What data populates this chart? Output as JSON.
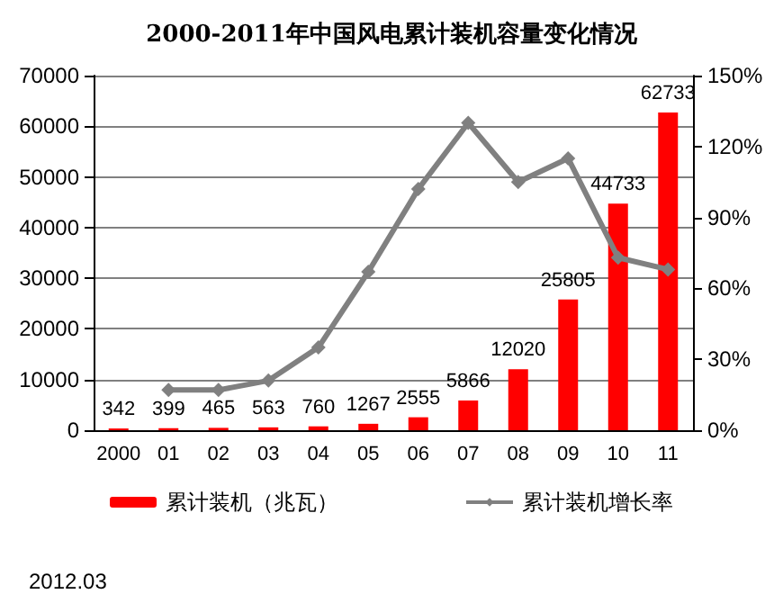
{
  "chart_data": {
    "type": "bar",
    "title": "2000-2011年中国风电累计装机容量变化情况",
    "categories": [
      "2000",
      "01",
      "02",
      "03",
      "04",
      "05",
      "06",
      "07",
      "08",
      "09",
      "10",
      "11"
    ],
    "series": [
      {
        "name": "累计装机（兆瓦）",
        "color": "#ff0000",
        "values": [
          342,
          399,
          465,
          563,
          760,
          1267,
          2555,
          5866,
          12020,
          25805,
          44733,
          62733
        ],
        "value_labels": [
          "342",
          "399",
          "465",
          "563",
          "760",
          "1267",
          "2555",
          "5866",
          "12020",
          "25805",
          "44733",
          "62733"
        ]
      },
      {
        "name": "累计装机增长率",
        "type": "line",
        "axis": "y2",
        "color": "#808080",
        "marker": "diamond",
        "values": [
          null,
          17,
          17,
          21,
          35,
          67,
          102,
          130,
          105,
          115,
          73,
          68
        ]
      }
    ],
    "ylim": [
      0,
      70000
    ],
    "yticks": [
      0,
      10000,
      20000,
      30000,
      40000,
      50000,
      60000,
      70000
    ],
    "y2lim": [
      0,
      150
    ],
    "y2ticks": [
      {
        "value": 0,
        "label": "0%"
      },
      {
        "value": 30,
        "label": "30%"
      },
      {
        "value": 60,
        "label": "60%"
      },
      {
        "value": 90,
        "label": "90%"
      },
      {
        "value": 120,
        "label": "120%"
      },
      {
        "value": 150,
        "label": "150%"
      }
    ],
    "grid": "y",
    "legend": "bottom",
    "annotations": [
      "2012.03"
    ]
  }
}
